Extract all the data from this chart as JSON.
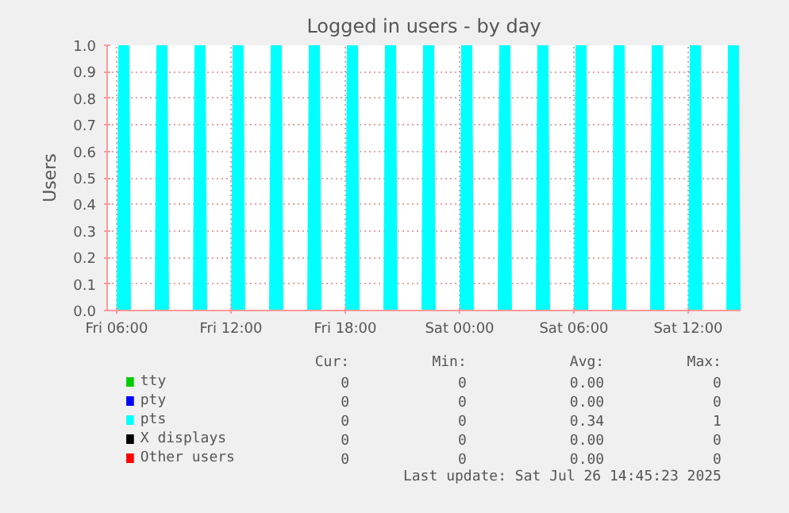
{
  "chart_data": {
    "type": "area",
    "title": "Logged in users - by day",
    "ylabel": "Users",
    "x": [
      "2025-07-25T05:30",
      "2025-07-25T06:00",
      "2025-07-25T06:05",
      "2025-07-25T06:40",
      "2025-07-25T06:45",
      "2025-07-25T08:00",
      "2025-07-25T08:05",
      "2025-07-25T08:40",
      "2025-07-25T08:45",
      "2025-07-25T10:00",
      "2025-07-25T10:05",
      "2025-07-25T10:40",
      "2025-07-25T10:45",
      "2025-07-25T12:00",
      "2025-07-25T12:05",
      "2025-07-25T12:40",
      "2025-07-25T12:45",
      "2025-07-25T14:00",
      "2025-07-25T14:05",
      "2025-07-25T14:40",
      "2025-07-25T14:45",
      "2025-07-25T16:00",
      "2025-07-25T16:05",
      "2025-07-25T16:40",
      "2025-07-25T16:45",
      "2025-07-25T18:00",
      "2025-07-25T18:05",
      "2025-07-25T18:40",
      "2025-07-25T18:45",
      "2025-07-25T20:00",
      "2025-07-25T20:05",
      "2025-07-25T20:40",
      "2025-07-25T20:45",
      "2025-07-25T22:00",
      "2025-07-25T22:05",
      "2025-07-25T22:40",
      "2025-07-25T22:45",
      "2025-07-26T00:00",
      "2025-07-26T00:05",
      "2025-07-26T00:40",
      "2025-07-26T00:45",
      "2025-07-26T02:00",
      "2025-07-26T02:05",
      "2025-07-26T02:40",
      "2025-07-26T02:45",
      "2025-07-26T04:00",
      "2025-07-26T04:05",
      "2025-07-26T04:40",
      "2025-07-26T04:45",
      "2025-07-26T06:00",
      "2025-07-26T06:05",
      "2025-07-26T06:40",
      "2025-07-26T06:45",
      "2025-07-26T08:00",
      "2025-07-26T08:05",
      "2025-07-26T08:40",
      "2025-07-26T08:45",
      "2025-07-26T10:00",
      "2025-07-26T10:05",
      "2025-07-26T10:40",
      "2025-07-26T10:45",
      "2025-07-26T12:00",
      "2025-07-26T12:05",
      "2025-07-26T12:40",
      "2025-07-26T12:45",
      "2025-07-26T14:00",
      "2025-07-26T14:05",
      "2025-07-26T14:40",
      "2025-07-26T14:45"
    ],
    "series": [
      {
        "name": "tty",
        "color": "#00cc00",
        "values": [
          null,
          null,
          null,
          null,
          null,
          null,
          null,
          null,
          null,
          null,
          null,
          null,
          null,
          null,
          null,
          null,
          null,
          null,
          null,
          null,
          null,
          null,
          null,
          null,
          null,
          null,
          null,
          null,
          null,
          null,
          null,
          null,
          null,
          null,
          null,
          null,
          null,
          null,
          null,
          null,
          null,
          null,
          null,
          null,
          null,
          null,
          null,
          null,
          null,
          null,
          null,
          null,
          null,
          null,
          null,
          null,
          null,
          null,
          null,
          null,
          null,
          null,
          null,
          null,
          null,
          null,
          null,
          null,
          null
        ]
      },
      {
        "name": "pty",
        "color": "#0000ff",
        "values": [
          null,
          null,
          null,
          null,
          null,
          null,
          null,
          null,
          null,
          null,
          null,
          null,
          null,
          null,
          null,
          null,
          null,
          null,
          null,
          null,
          null,
          null,
          null,
          null,
          null,
          null,
          null,
          null,
          null,
          null,
          null,
          null,
          null,
          null,
          null,
          null,
          null,
          null,
          null,
          null,
          null,
          null,
          null,
          null,
          null,
          null,
          null,
          null,
          null,
          null,
          null,
          null,
          null,
          null,
          null,
          null,
          null,
          null,
          null,
          null,
          null,
          null,
          null,
          null,
          null,
          null,
          null,
          null,
          null
        ]
      },
      {
        "name": "pts",
        "color": "#00ffff",
        "values": [
          0,
          0,
          1,
          1,
          0,
          0,
          1,
          1,
          0,
          0,
          1,
          1,
          0,
          0,
          1,
          1,
          0,
          0,
          1,
          1,
          0,
          0,
          1,
          1,
          0,
          0,
          1,
          1,
          0,
          0,
          1,
          1,
          0,
          0,
          1,
          1,
          0,
          0,
          1,
          1,
          0,
          0,
          1,
          1,
          0,
          0,
          1,
          1,
          0,
          0,
          1,
          1,
          0,
          0,
          1,
          1,
          0,
          0,
          1,
          1,
          0,
          0,
          1,
          1,
          0,
          0,
          1,
          1,
          0
        ]
      },
      {
        "name": "X displays",
        "color": "#000000",
        "values": [
          null,
          null,
          null,
          null,
          null,
          null,
          null,
          null,
          null,
          null,
          null,
          null,
          null,
          null,
          null,
          null,
          null,
          null,
          null,
          null,
          null,
          null,
          null,
          null,
          null,
          null,
          null,
          null,
          null,
          null,
          null,
          null,
          null,
          null,
          null,
          null,
          null,
          null,
          null,
          null,
          null,
          null,
          null,
          null,
          null,
          null,
          null,
          null,
          null,
          null,
          null,
          null,
          null,
          null,
          null,
          null,
          null,
          null,
          null,
          null,
          null,
          null,
          null,
          null,
          null,
          null,
          null,
          null,
          null
        ]
      },
      {
        "name": "Other users",
        "color": "#ff0000",
        "values": [
          null,
          null,
          null,
          null,
          null,
          null,
          null,
          null,
          null,
          null,
          null,
          null,
          null,
          null,
          null,
          null,
          null,
          null,
          null,
          null,
          null,
          null,
          null,
          null,
          null,
          null,
          null,
          null,
          null,
          null,
          null,
          null,
          null,
          null,
          null,
          null,
          null,
          null,
          null,
          null,
          null,
          null,
          null,
          null,
          null,
          null,
          null,
          null,
          null,
          null,
          null,
          null,
          null,
          null,
          null,
          null,
          null,
          null,
          null,
          null,
          null,
          null,
          null,
          null,
          null,
          null,
          null,
          null,
          null
        ]
      }
    ],
    "xlim": [
      "2025-07-25T05:30",
      "2025-07-26T14:45"
    ],
    "xticks": [
      {
        "value": "2025-07-25T06:00",
        "label": "Fri 06:00"
      },
      {
        "value": "2025-07-25T12:00",
        "label": "Fri 12:00"
      },
      {
        "value": "2025-07-25T18:00",
        "label": "Fri 18:00"
      },
      {
        "value": "2025-07-26T00:00",
        "label": "Sat 00:00"
      },
      {
        "value": "2025-07-26T06:00",
        "label": "Sat 06:00"
      },
      {
        "value": "2025-07-26T12:00",
        "label": "Sat 12:00"
      }
    ],
    "ylim": [
      0,
      1
    ],
    "yticks": [
      {
        "value": 0,
        "label": "0.0"
      },
      {
        "value": 0.1,
        "label": "0.1"
      },
      {
        "value": 0.2,
        "label": "0.2"
      },
      {
        "value": 0.3,
        "label": "0.3"
      },
      {
        "value": 0.4,
        "label": "0.4"
      },
      {
        "value": 0.5,
        "label": "0.5"
      },
      {
        "value": 0.6,
        "label": "0.6"
      },
      {
        "value": 0.7,
        "label": "0.7"
      },
      {
        "value": 0.8,
        "label": "0.8"
      },
      {
        "value": 0.9,
        "label": "0.9"
      },
      {
        "value": 1,
        "label": "1.0"
      }
    ],
    "grid": true,
    "legend": "bottom",
    "annotations": [
      "Cur:",
      "Min:",
      "Avg:",
      "Max:",
      "0",
      "0",
      "0.00",
      "0",
      "0",
      "0",
      "0.00",
      "0",
      "0",
      "0",
      "0.34",
      "1",
      "0",
      "0",
      "0.00",
      "0",
      "0",
      "0",
      "0.00",
      "0",
      "Last update: Sat Jul 26 14:45:23 2025"
    ]
  }
}
